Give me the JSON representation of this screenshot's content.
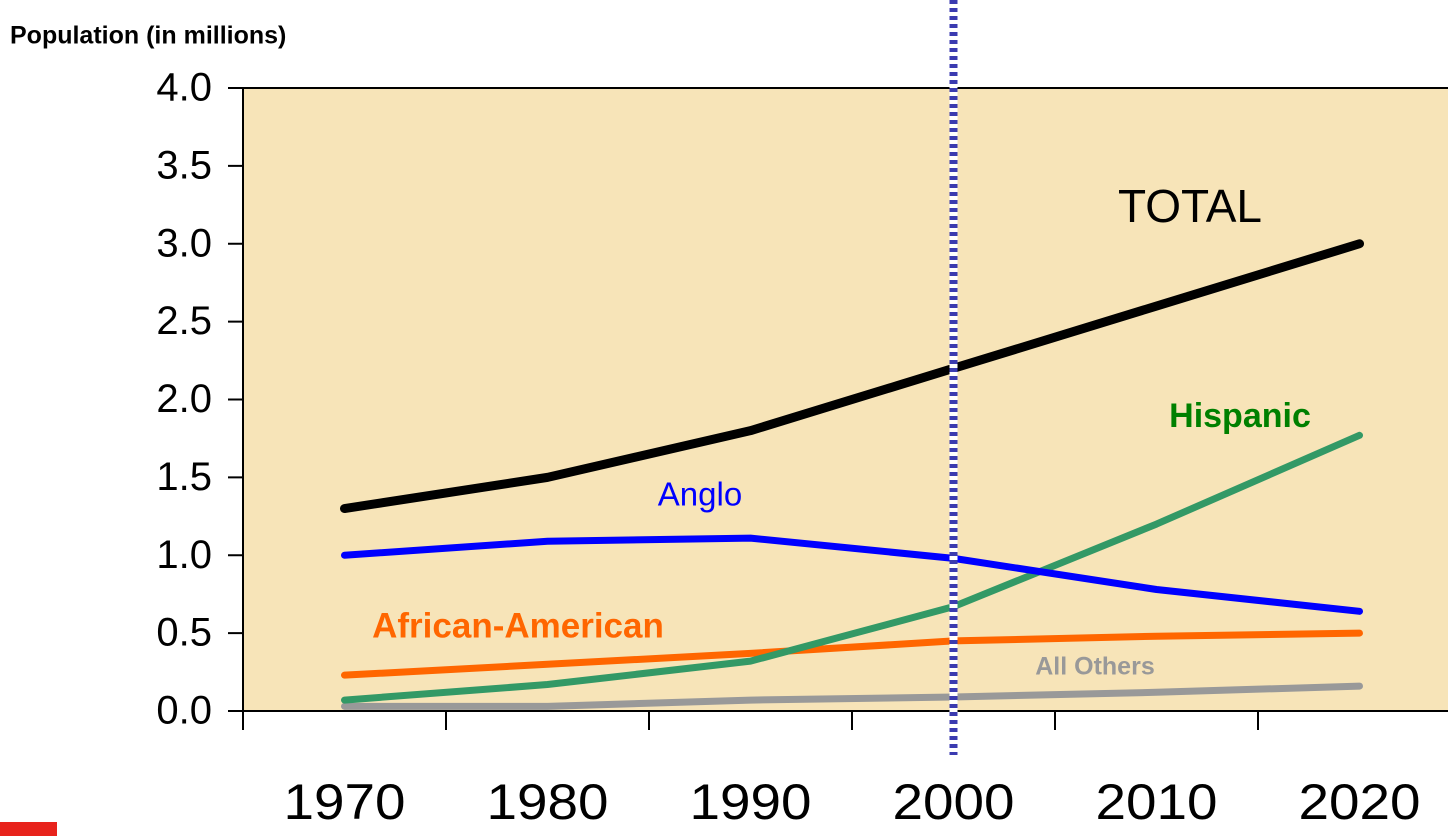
{
  "chart_data": {
    "type": "line",
    "y_axis_label": "Population (in millions)",
    "categories": [
      "1970",
      "1980",
      "1990",
      "2000",
      "2010",
      "2020"
    ],
    "ylim": [
      0,
      4
    ],
    "yticks": [
      {
        "value": 0,
        "label": "0.0"
      },
      0.5,
      {
        "value": 1,
        "label": "1.0"
      },
      1.5,
      {
        "value": 2,
        "label": "2.0"
      },
      2.5,
      {
        "value": 3,
        "label": "3.0"
      },
      3.5,
      {
        "value": 4,
        "label": "4.0"
      }
    ],
    "series": [
      {
        "name": "TOTAL",
        "color": "#000000",
        "values": [
          1.3,
          1.5,
          1.8,
          2.2,
          2.6,
          3.0
        ]
      },
      {
        "name": "Anglo",
        "color": "#0000ff",
        "values": [
          1.0,
          1.09,
          1.11,
          0.98,
          0.78,
          0.64
        ]
      },
      {
        "name": "Hispanic",
        "color": "#339966",
        "values": [
          0.07,
          0.17,
          0.32,
          0.67,
          1.2,
          1.77
        ]
      },
      {
        "name": "African-American",
        "color": "#ff6600",
        "values": [
          0.23,
          0.3,
          0.37,
          0.45,
          0.48,
          0.5
        ]
      },
      {
        "name": "All Others",
        "color": "#999999",
        "values": [
          0.03,
          0.03,
          0.07,
          0.09,
          0.12,
          0.16
        ]
      }
    ]
  }
}
